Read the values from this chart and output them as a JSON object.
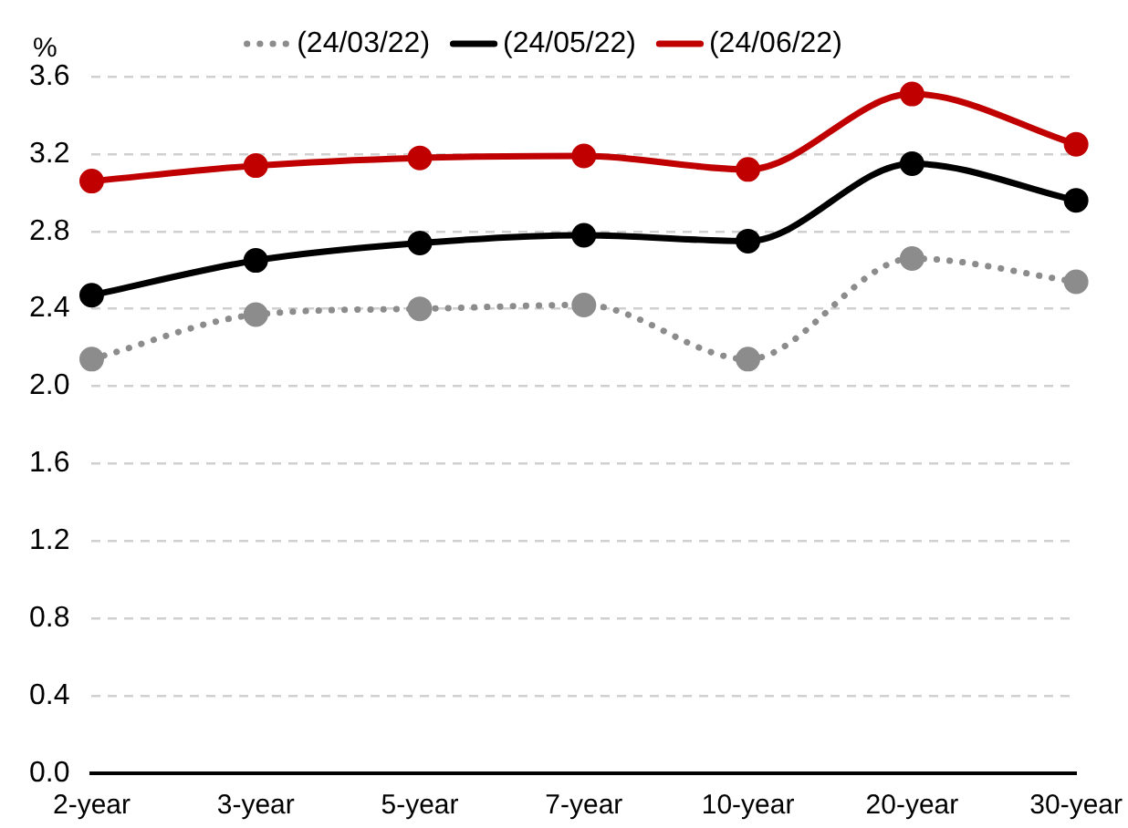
{
  "chart_data": {
    "type": "line",
    "ylabel": "%",
    "categories": [
      "2-year",
      "3-year",
      "5-year",
      "7-year",
      "10-year",
      "20-year",
      "30-year"
    ],
    "series": [
      {
        "name": "(24/03/22)",
        "color": "#8c8c8c",
        "line_style": "dotted",
        "values": [
          2.14,
          2.37,
          2.4,
          2.42,
          2.14,
          2.66,
          2.54
        ]
      },
      {
        "name": "(24/05/22)",
        "color": "#000000",
        "values": [
          2.47,
          2.65,
          2.74,
          2.78,
          2.75,
          3.15,
          2.96
        ]
      },
      {
        "name": "(24/06/22)",
        "color": "#c00000",
        "values": [
          3.06,
          3.14,
          3.18,
          3.19,
          3.12,
          3.51,
          3.25
        ]
      }
    ],
    "ylim": [
      0,
      3.6
    ],
    "yticks": [
      {
        "value": 0,
        "label": "0.0"
      },
      0.4,
      0.8,
      1.2,
      1.6,
      {
        "value": 2,
        "label": "2.0"
      },
      2.4,
      2.8,
      3.2,
      3.6
    ],
    "grid": "y",
    "legend": "top",
    "marker": "circle",
    "line_style": "solid"
  }
}
